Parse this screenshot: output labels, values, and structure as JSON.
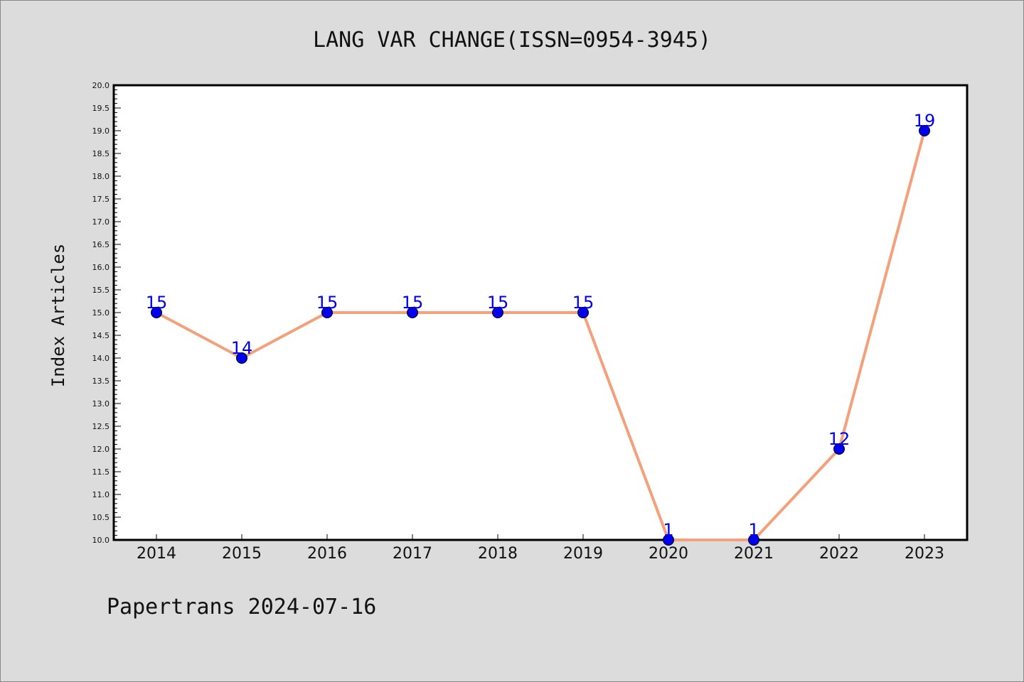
{
  "footer": "Papertrans 2024-07-16",
  "chart_data": {
    "type": "line",
    "title": "LANG VAR CHANGE(ISSN=0954-3945)",
    "xlabel": "",
    "ylabel": "Index Articles",
    "categories": [
      "2014",
      "2015",
      "2016",
      "2017",
      "2018",
      "2019",
      "2020",
      "2021",
      "2022",
      "2023"
    ],
    "series": [
      {
        "values": [
          15,
          14,
          15,
          15,
          15,
          15,
          1,
          1,
          12,
          19
        ],
        "plotted_y": [
          15,
          14,
          15,
          15,
          15,
          15,
          10,
          10,
          12,
          19
        ],
        "line_color": "#f4a07a",
        "marker_color": "#0000ee"
      }
    ],
    "ylim": [
      10.0,
      20.0
    ],
    "ytick_step": 0.5,
    "grid": false,
    "legend": "none"
  }
}
